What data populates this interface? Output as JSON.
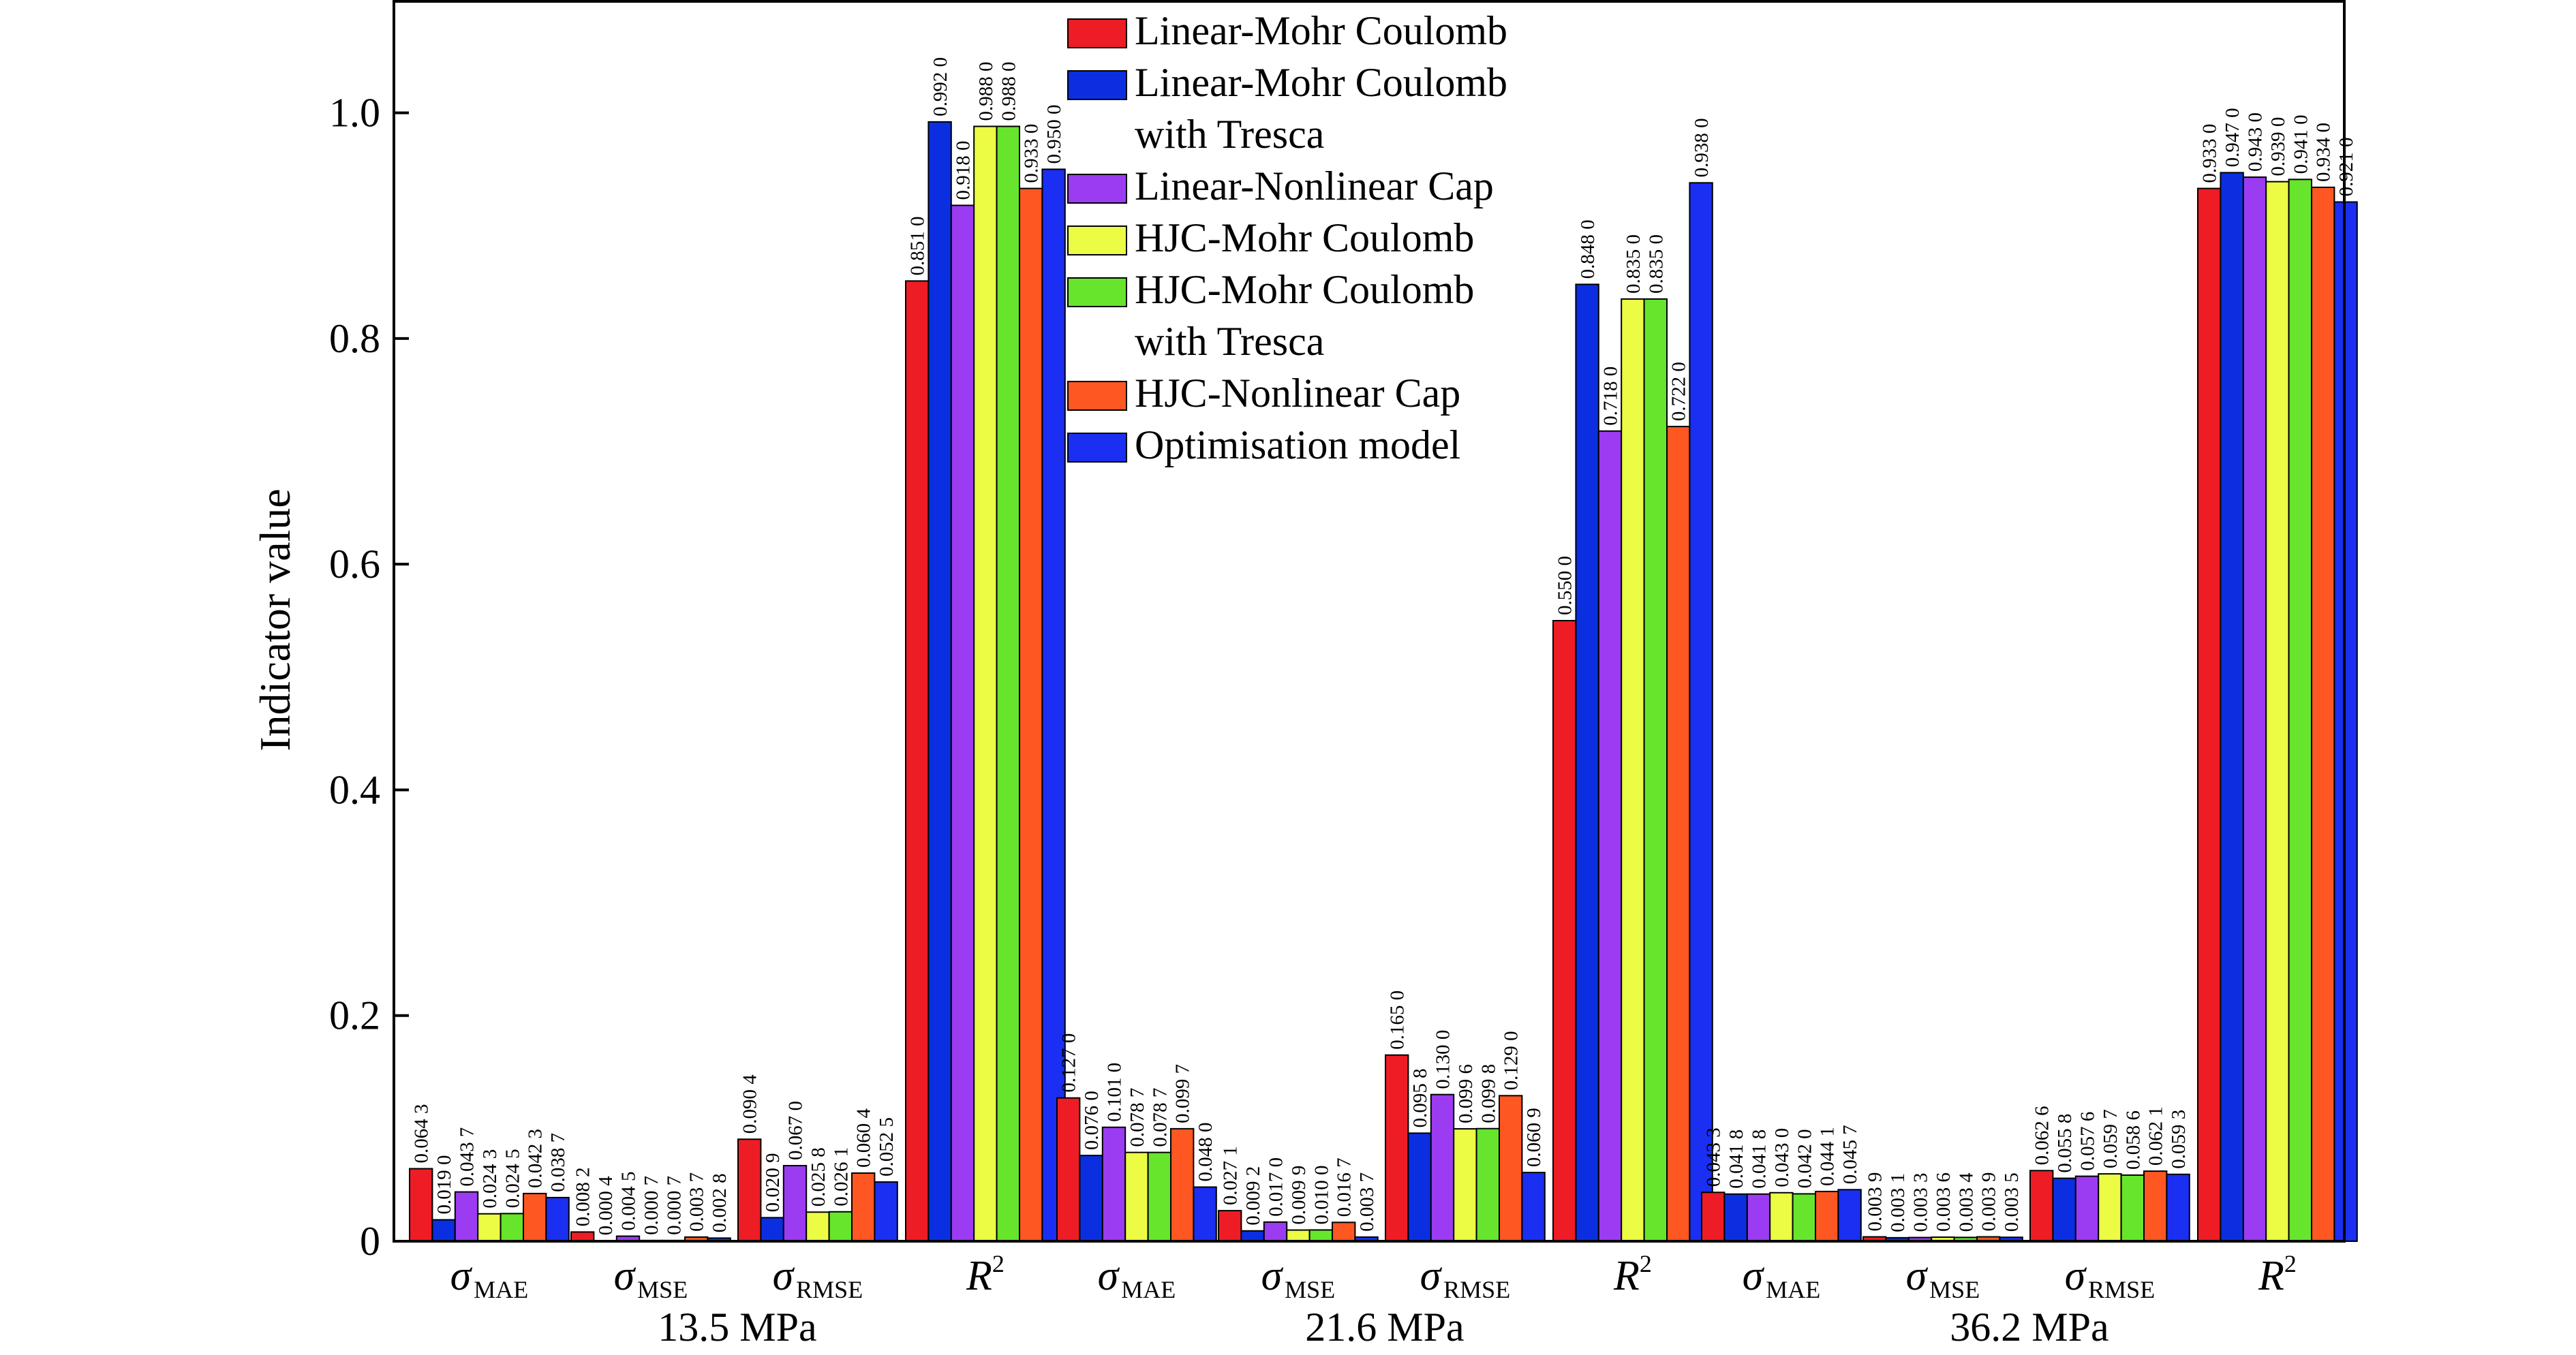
{
  "chart_data": {
    "type": "bar",
    "ylabel": "Indicator value",
    "ylim": [
      0,
      1.1
    ],
    "yticks": [
      "0",
      "0.2",
      "0.4",
      "0.6",
      "0.8",
      "1.0"
    ],
    "ytick_values": [
      0,
      0.2,
      0.4,
      0.6,
      0.8,
      1.0
    ],
    "legend_position": "top-center",
    "legend": [
      {
        "name": "Linear-Mohr Coulomb",
        "lines": [
          "Linear-Mohr Coulomb"
        ],
        "color": "#ee1c25"
      },
      {
        "name": "Linear-Mohr Coulomb with Tresca",
        "lines": [
          "Linear-Mohr Coulomb",
          "with Tresca"
        ],
        "color": "#0b2fe0"
      },
      {
        "name": "Linear-Nonlinear Cap",
        "lines": [
          "Linear-Nonlinear Cap"
        ],
        "color": "#9b3bf2"
      },
      {
        "name": "HJC-Mohr Coulomb",
        "lines": [
          "HJC-Mohr Coulomb"
        ],
        "color": "#ecfb43"
      },
      {
        "name": "HJC-Mohr Coulomb with Tresca",
        "lines": [
          "HJC-Mohr Coulomb",
          "with Tresca"
        ],
        "color": "#66e52c"
      },
      {
        "name": "HJC-Nonlinear Cap",
        "lines": [
          "HJC-Nonlinear Cap"
        ],
        "color": "#ff5722"
      },
      {
        "name": "Optimisation model",
        "lines": [
          "Optimisation model"
        ],
        "color": "#1a2ff2"
      }
    ],
    "groups": [
      {
        "label": "13.5 MPa",
        "categories": [
          {
            "main": "σ",
            "sub": "MAE",
            "values": [
              0.0643,
              0.019,
              0.0437,
              0.0243,
              0.0245,
              0.0423,
              0.0387
            ],
            "labels": [
              "0.064 3",
              "0.019 0",
              "0.043 7",
              "0.024 3",
              "0.024 5",
              "0.042 3",
              "0.038 7"
            ]
          },
          {
            "main": "σ",
            "sub": "MSE",
            "values": [
              0.0082,
              0.0004,
              0.0045,
              0.0007,
              0.0007,
              0.0037,
              0.0028
            ],
            "labels": [
              "0.008 2",
              "0.000 4",
              "0.004 5",
              "0.000 7",
              "0.000 7",
              "0.003 7",
              "0.002 8"
            ]
          },
          {
            "main": "σ",
            "sub": "RMSE",
            "values": [
              0.0904,
              0.0209,
              0.067,
              0.0258,
              0.0261,
              0.0604,
              0.0525
            ],
            "labels": [
              "0.090 4",
              "0.020 9",
              "0.067 0",
              "0.025 8",
              "0.026 1",
              "0.060 4",
              "0.052 5"
            ]
          },
          {
            "main": "R",
            "sup": "2",
            "values": [
              0.851,
              0.992,
              0.918,
              0.988,
              0.988,
              0.933,
              0.95
            ],
            "labels": [
              "0.851 0",
              "0.992 0",
              "0.918 0",
              "0.988 0",
              "0.988 0",
              "0.933 0",
              "0.950 0"
            ]
          }
        ]
      },
      {
        "label": "21.6 MPa",
        "categories": [
          {
            "main": "σ",
            "sub": "MAE",
            "values": [
              0.127,
              0.076,
              0.101,
              0.0787,
              0.0787,
              0.0997,
              0.048
            ],
            "labels": [
              "0.127 0",
              "0.076 0",
              "0.101 0",
              "0.078 7",
              "0.078 7",
              "0.099 7",
              "0.048 0"
            ]
          },
          {
            "main": "σ",
            "sub": "MSE",
            "values": [
              0.0271,
              0.0092,
              0.017,
              0.0099,
              0.01,
              0.0167,
              0.0037
            ],
            "labels": [
              "0.027 1",
              "0.009 2",
              "0.017 0",
              "0.009 9",
              "0.010 0",
              "0.016 7",
              "0.003 7"
            ]
          },
          {
            "main": "σ",
            "sub": "RMSE",
            "values": [
              0.165,
              0.0958,
              0.13,
              0.0996,
              0.0998,
              0.129,
              0.0609
            ],
            "labels": [
              "0.165 0",
              "0.095 8",
              "0.130 0",
              "0.099 6",
              "0.099 8",
              "0.129 0",
              "0.060 9"
            ]
          },
          {
            "main": "R",
            "sup": "2",
            "values": [
              0.55,
              0.848,
              0.718,
              0.835,
              0.835,
              0.722,
              0.938
            ],
            "labels": [
              "0.550 0",
              "0.848 0",
              "0.718 0",
              "0.835 0",
              "0.835 0",
              "0.722 0",
              "0.938 0"
            ]
          }
        ]
      },
      {
        "label": "36.2 MPa",
        "categories": [
          {
            "main": "σ",
            "sub": "MAE",
            "values": [
              0.0433,
              0.0418,
              0.0418,
              0.043,
              0.042,
              0.0441,
              0.0457
            ],
            "labels": [
              "0.043 3",
              "0.041 8",
              "0.041 8",
              "0.043 0",
              "0.042 0",
              "0.044 1",
              "0.045 7"
            ]
          },
          {
            "main": "σ",
            "sub": "MSE",
            "values": [
              0.0039,
              0.0031,
              0.0033,
              0.0036,
              0.0034,
              0.0039,
              0.0035
            ],
            "labels": [
              "0.003 9",
              "0.003 1",
              "0.003 3",
              "0.003 6",
              "0.003 4",
              "0.003 9",
              "0.003 5"
            ]
          },
          {
            "main": "σ",
            "sub": "RMSE",
            "values": [
              0.0626,
              0.0558,
              0.0576,
              0.0597,
              0.0586,
              0.0621,
              0.0593
            ],
            "labels": [
              "0.062 6",
              "0.055 8",
              "0.057 6",
              "0.059 7",
              "0.058 6",
              "0.062 1",
              "0.059 3"
            ]
          },
          {
            "main": "R",
            "sup": "2",
            "values": [
              0.933,
              0.947,
              0.943,
              0.939,
              0.941,
              0.934,
              0.921
            ],
            "labels": [
              "0.933 0",
              "0.947 0",
              "0.943 0",
              "0.939 0",
              "0.941 0",
              "0.934 0",
              "0.921 0"
            ]
          }
        ]
      }
    ]
  }
}
